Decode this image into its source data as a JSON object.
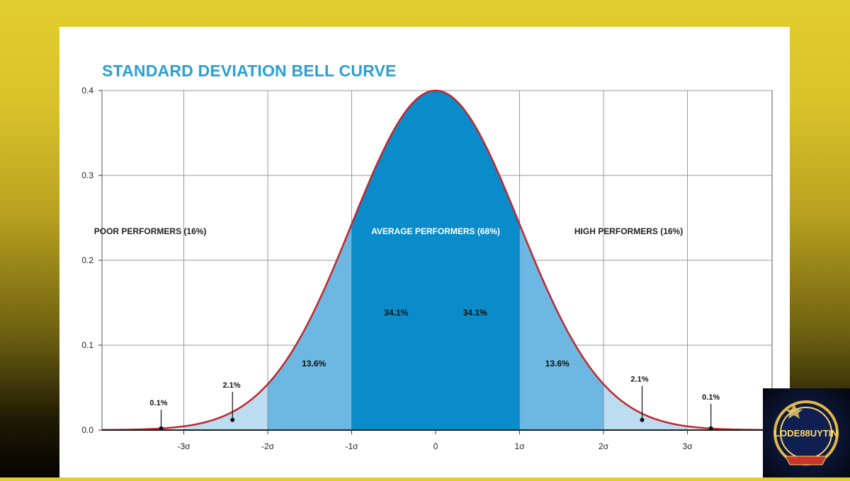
{
  "chart_data": {
    "type": "area",
    "title": "STANDARD DEVIATION BELL CURVE",
    "xlabel": "",
    "ylabel": "",
    "x_tick_labels": [
      "-3σ",
      "-2σ",
      "-1σ",
      "0",
      "1σ",
      "2σ",
      "3σ"
    ],
    "x_tick_values": [
      -3,
      -2,
      -1,
      0,
      1,
      2,
      3
    ],
    "y_ticks": [
      0.0,
      0.1,
      0.2,
      0.3,
      0.4
    ],
    "y_tick_labels": [
      "0.0",
      "0.1",
      "0.2",
      "0.3",
      "0.4"
    ],
    "xlim": [
      -4,
      3.8
    ],
    "ylim": [
      0,
      0.4
    ],
    "grid": true,
    "curve": {
      "distribution": "standard normal",
      "mean": 0,
      "sd": 1,
      "peak": 0.4,
      "color": "#c0272d"
    },
    "regions": [
      {
        "from": -1,
        "to": 0,
        "label": "34.1%",
        "color": "#0a8ccb"
      },
      {
        "from": 0,
        "to": 1,
        "label": "34.1%",
        "color": "#0a8ccb"
      },
      {
        "from": -2,
        "to": -1,
        "label": "13.6%",
        "color": "#6db8e3"
      },
      {
        "from": 1,
        "to": 2,
        "label": "13.6%",
        "color": "#6db8e3"
      },
      {
        "from": -3,
        "to": -2,
        "label": "2.1%",
        "color": "#bcdcf1"
      },
      {
        "from": 2,
        "to": 3,
        "label": "2.1%",
        "color": "#bcdcf1"
      },
      {
        "from": -4,
        "to": -3,
        "label": "0.1%",
        "color": "#e3f0f9"
      },
      {
        "from": 3,
        "to": 3.8,
        "label": "0.1%",
        "color": "#e3f0f9"
      }
    ],
    "group_labels": [
      {
        "text": "POOR PERFORMERS (16%)",
        "center": -3.4
      },
      {
        "text": "AVERAGE PERFORMERS (68%)",
        "center": 0
      },
      {
        "text": "HIGH PERFORMERS (16%)",
        "center": 2.3
      }
    ]
  },
  "logo": {
    "text": "LODE88UYTIN"
  }
}
